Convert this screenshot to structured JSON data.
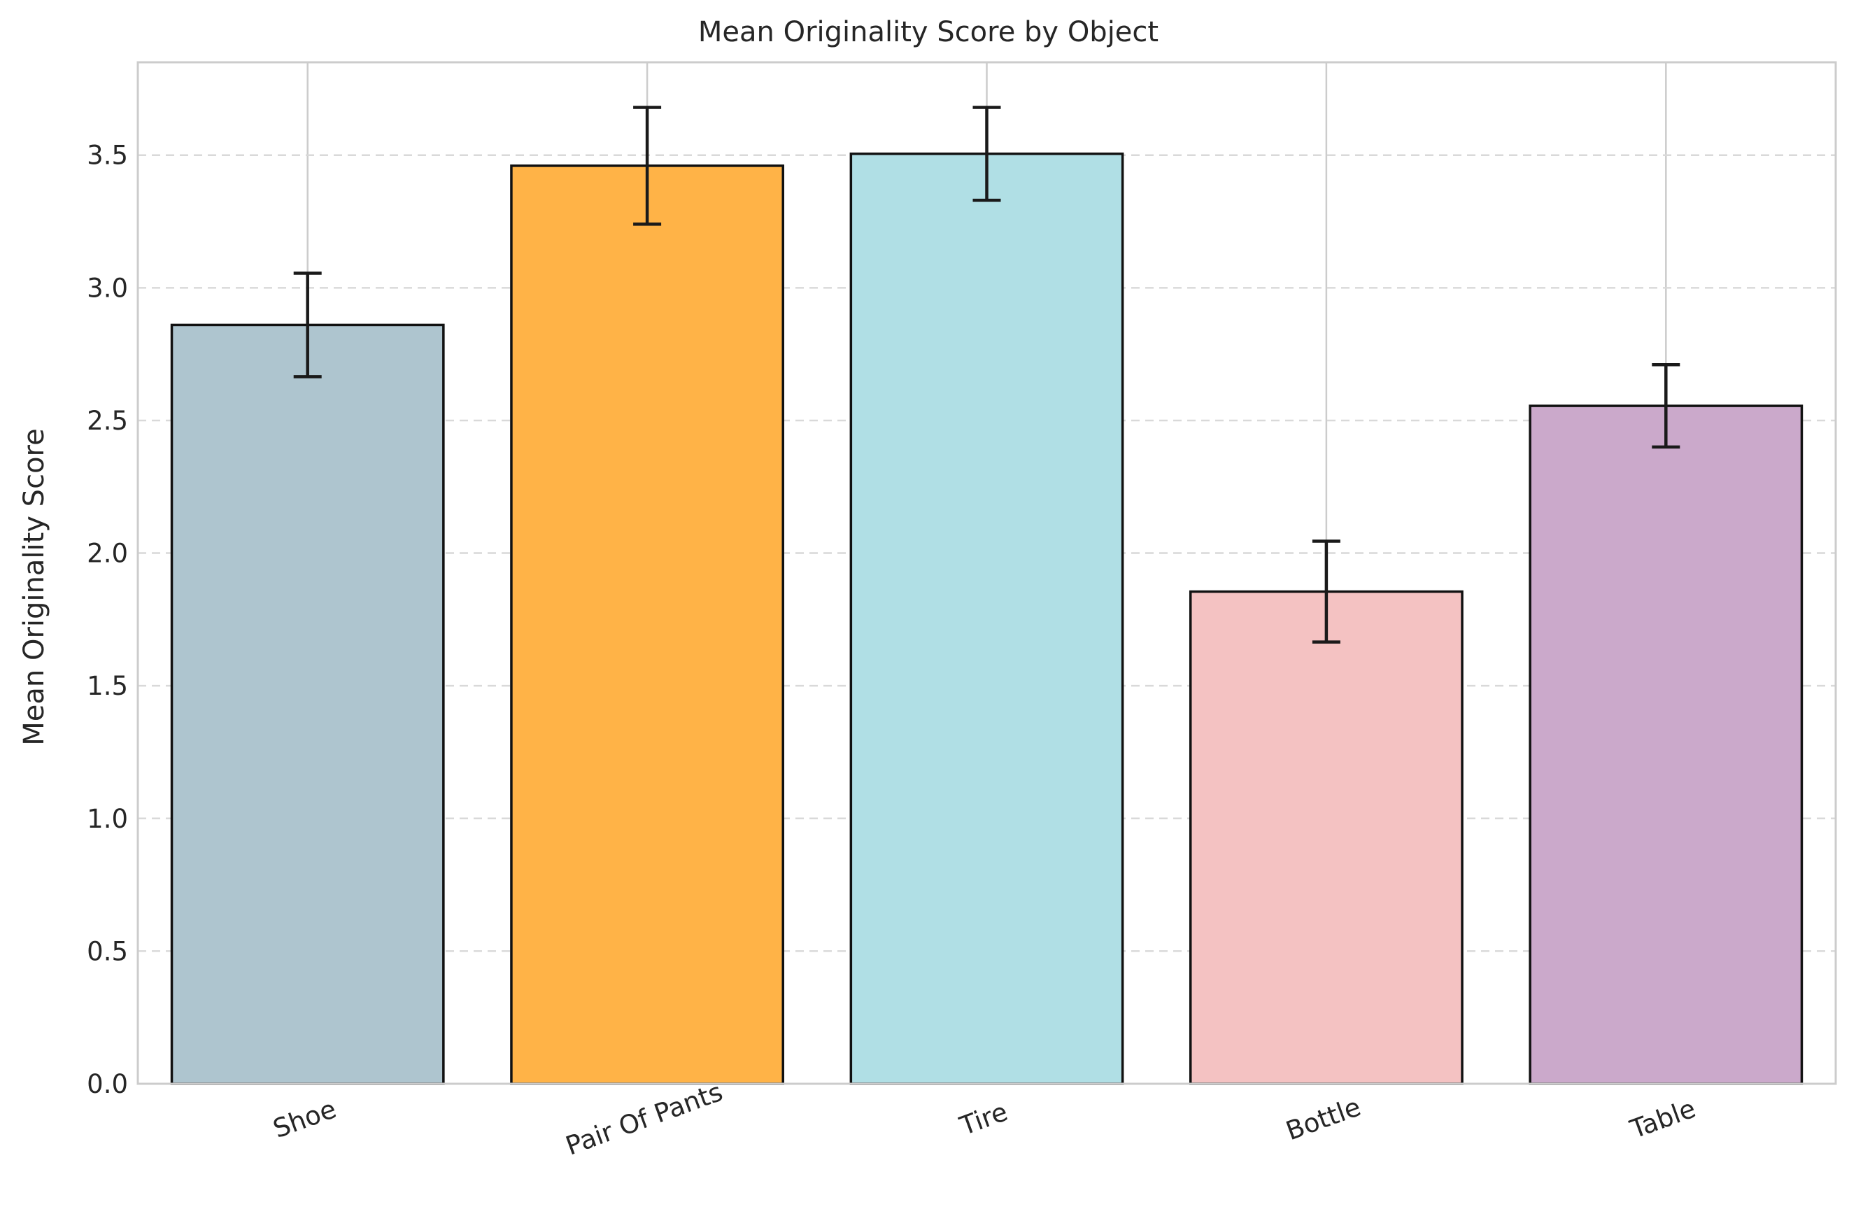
{
  "chart_data": {
    "type": "bar",
    "title": "Mean Originality Score by Object",
    "xlabel": "",
    "ylabel": "Mean Originality Score",
    "categories": [
      "Shoe",
      "Pair Of Pants",
      "Tire",
      "Bottle",
      "Table"
    ],
    "values": [
      2.86,
      3.46,
      3.505,
      1.855,
      2.555
    ],
    "errors": [
      0.195,
      0.22,
      0.175,
      0.19,
      0.155
    ],
    "colors": [
      "#aec5cf",
      "#ffb347",
      "#b0dfe5",
      "#f4c2c2",
      "#cba9cb"
    ],
    "ylim": [
      0,
      3.85
    ],
    "yticks": [
      "0.0",
      "0.5",
      "1.0",
      "1.5",
      "2.0",
      "2.5",
      "3.0",
      "3.5"
    ],
    "grid": true,
    "legend": "none"
  }
}
